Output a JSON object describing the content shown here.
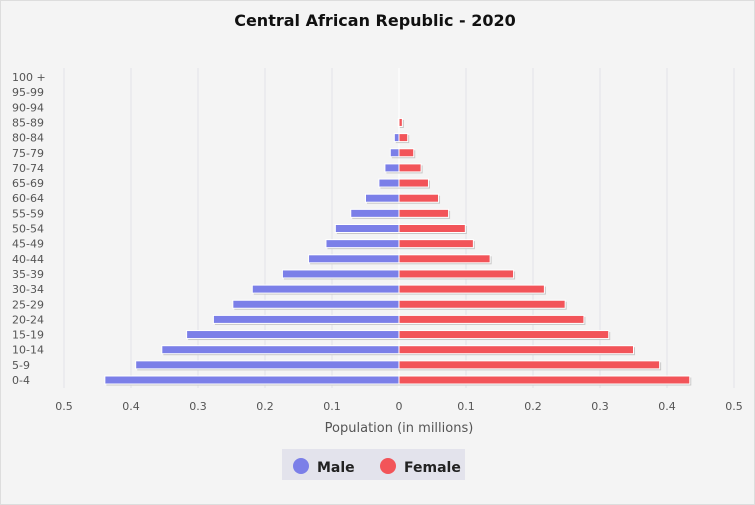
{
  "chart_data": {
    "type": "bar",
    "orientation": "horizontal-pyramid",
    "title": "Central African Republic - 2020",
    "xlabel": "Population (in millions)",
    "ylabel": "",
    "xlim": [
      -0.5,
      0.5
    ],
    "xticks": [
      "0.5",
      "0.4",
      "0.3",
      "0.2",
      "0.1",
      "0",
      "0.1",
      "0.2",
      "0.3",
      "0.4",
      "0.5"
    ],
    "grid": true,
    "legend_position": "bottom",
    "categories": [
      "0-4",
      "5-9",
      "10-14",
      "15-19",
      "20-24",
      "25-29",
      "30-34",
      "35-39",
      "40-44",
      "45-49",
      "50-54",
      "55-59",
      "60-64",
      "65-69",
      "70-74",
      "75-79",
      "80-84",
      "85-89",
      "90-94",
      "95-99",
      "100 +"
    ],
    "series": [
      {
        "name": "Male",
        "color": "#7b7fe8",
        "values": [
          0.439,
          0.393,
          0.354,
          0.317,
          0.277,
          0.248,
          0.219,
          0.174,
          0.135,
          0.109,
          0.095,
          0.072,
          0.05,
          0.03,
          0.021,
          0.013,
          0.007,
          0.001,
          0,
          0,
          0
        ]
      },
      {
        "name": "Female",
        "color": "#f25459",
        "values": [
          0.434,
          0.389,
          0.35,
          0.313,
          0.276,
          0.248,
          0.217,
          0.171,
          0.136,
          0.111,
          0.099,
          0.074,
          0.059,
          0.044,
          0.033,
          0.022,
          0.013,
          0.005,
          0,
          0,
          0
        ]
      }
    ]
  }
}
